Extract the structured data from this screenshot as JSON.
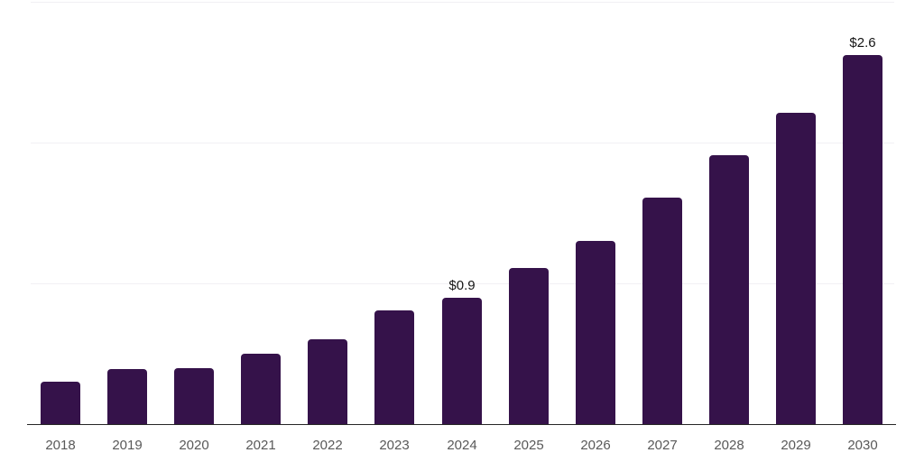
{
  "chart_data": {
    "type": "bar",
    "title": "",
    "xlabel": "",
    "ylabel": "",
    "categories": [
      "2018",
      "2019",
      "2020",
      "2021",
      "2022",
      "2023",
      "2024",
      "2025",
      "2026",
      "2027",
      "2028",
      "2029",
      "2030"
    ],
    "values": [
      0.3,
      0.39,
      0.4,
      0.5,
      0.6,
      0.81,
      0.9,
      1.11,
      1.3,
      1.61,
      1.91,
      2.21,
      2.62
    ],
    "bar_labels": {
      "2024": "$0.9",
      "2030": "$2.6"
    },
    "ylim": [
      0,
      3.0
    ],
    "gridline_values": [
      1.0,
      2.0,
      3.0
    ],
    "legend": [],
    "grid": "horizontal-only",
    "colors": {
      "bar": "#35124A",
      "gridline": "#f1f0f4",
      "axis_line": "#262626",
      "tick_label": "#595959",
      "value_label": "#141414",
      "background": "#ffffff"
    }
  }
}
